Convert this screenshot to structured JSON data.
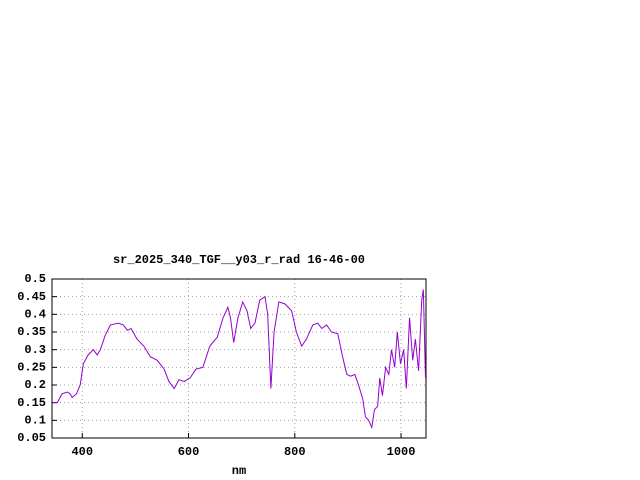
{
  "chart_data": {
    "type": "line",
    "title": "sr_2025_340_TGF__y03_r_rad 16-46-00",
    "x_label": "nm",
    "x": [
      344,
      353,
      362,
      372,
      377,
      381,
      389,
      396,
      402,
      411,
      421,
      428,
      434,
      443,
      453,
      468,
      477,
      485,
      492,
      503,
      516,
      528,
      541,
      554,
      563,
      573,
      582,
      592,
      603,
      614,
      627,
      640,
      654,
      665,
      674,
      679,
      685,
      693,
      702,
      710,
      717,
      725,
      734,
      744,
      749,
      755,
      761,
      770,
      781,
      794,
      803,
      813,
      822,
      834,
      843,
      851,
      860,
      869,
      881,
      890,
      898,
      905,
      913,
      920,
      928,
      933,
      939,
      945,
      950,
      956,
      960,
      965,
      971,
      977,
      982,
      988,
      993,
      999,
      1005,
      1010,
      1016,
      1022,
      1027,
      1033,
      1039,
      1042,
      1046
    ],
    "series": [
      {
        "color": "#9400d3",
        "values": [
          0.15,
          0.15,
          0.175,
          0.18,
          0.175,
          0.165,
          0.175,
          0.2,
          0.26,
          0.285,
          0.3,
          0.285,
          0.3,
          0.34,
          0.37,
          0.375,
          0.37,
          0.355,
          0.36,
          0.33,
          0.31,
          0.28,
          0.27,
          0.245,
          0.21,
          0.19,
          0.215,
          0.21,
          0.22,
          0.245,
          0.25,
          0.31,
          0.335,
          0.39,
          0.42,
          0.39,
          0.32,
          0.39,
          0.435,
          0.41,
          0.36,
          0.375,
          0.44,
          0.45,
          0.4,
          0.19,
          0.35,
          0.435,
          0.43,
          0.41,
          0.35,
          0.31,
          0.33,
          0.37,
          0.375,
          0.36,
          0.37,
          0.35,
          0.345,
          0.28,
          0.23,
          0.225,
          0.23,
          0.2,
          0.16,
          0.11,
          0.1,
          0.08,
          0.13,
          0.14,
          0.22,
          0.17,
          0.25,
          0.23,
          0.3,
          0.25,
          0.35,
          0.26,
          0.3,
          0.19,
          0.39,
          0.27,
          0.33,
          0.24,
          0.44,
          0.47,
          0.22
        ]
      }
    ],
    "xlim": [
      343,
      1047
    ],
    "xticks": [
      400,
      600,
      800,
      1000
    ],
    "ylim": [
      0.05,
      0.5
    ],
    "yticks": [
      0.05,
      0.1,
      0.15,
      0.2,
      0.25,
      0.3,
      0.35,
      0.4,
      0.45,
      0.5
    ],
    "grid": true
  }
}
